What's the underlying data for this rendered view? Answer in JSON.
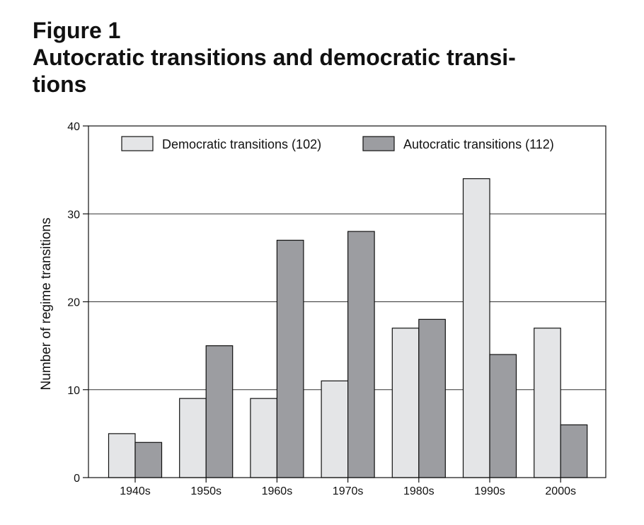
{
  "figure": {
    "label": "Figure 1",
    "title_line1": "Autocratic transitions and democratic transi-",
    "title_line2": "tions"
  },
  "chart_data": {
    "type": "bar",
    "categories": [
      "1940s",
      "1950s",
      "1960s",
      "1970s",
      "1980s",
      "1990s",
      "2000s"
    ],
    "series": [
      {
        "name": "Democratic transitions (102)",
        "values": [
          5,
          9,
          9,
          11,
          17,
          34,
          17
        ],
        "color": "#e4e5e7"
      },
      {
        "name": "Autocratic transitions (112)",
        "values": [
          4,
          15,
          27,
          28,
          18,
          14,
          6
        ],
        "color": "#9c9da1"
      }
    ],
    "ylabel": "Number of regime transitions",
    "xlabel": "",
    "ylim": [
      0,
      40
    ],
    "yticks": [
      0,
      10,
      20,
      30,
      40
    ],
    "grid": true,
    "legend": "top"
  }
}
